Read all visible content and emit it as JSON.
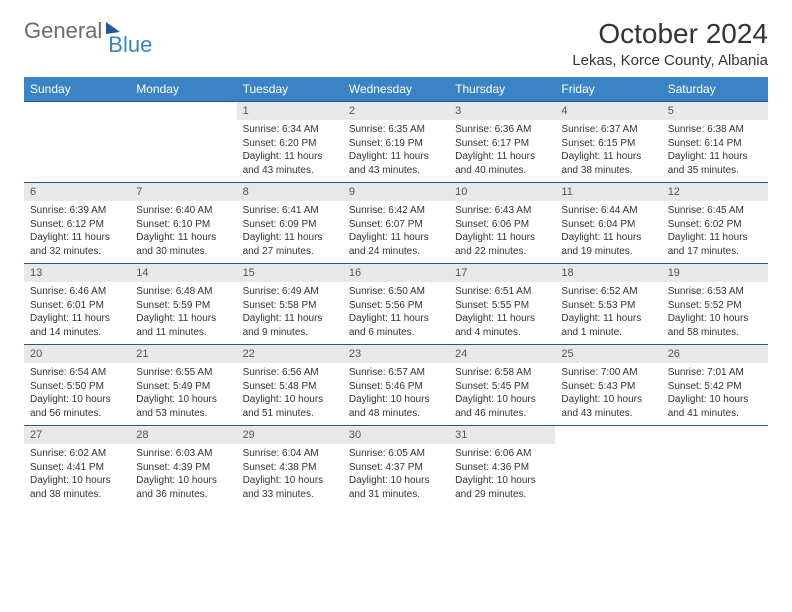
{
  "logo": {
    "part1": "General",
    "part2": "Blue"
  },
  "title": "October 2024",
  "location": "Lekas, Korce County, Albania",
  "colors": {
    "header_bg": "#3a84c5",
    "header_text": "#ffffff",
    "daynum_bg": "#e8e8e8",
    "week_border": "#1f5a96",
    "logo_gray": "#6b6b6b",
    "logo_blue": "#3a84c5"
  },
  "day_headers": [
    "Sunday",
    "Monday",
    "Tuesday",
    "Wednesday",
    "Thursday",
    "Friday",
    "Saturday"
  ],
  "weeks": [
    [
      null,
      null,
      {
        "d": "1",
        "sr": "6:34 AM",
        "ss": "6:20 PM",
        "dl": "11 hours and 43 minutes."
      },
      {
        "d": "2",
        "sr": "6:35 AM",
        "ss": "6:19 PM",
        "dl": "11 hours and 43 minutes."
      },
      {
        "d": "3",
        "sr": "6:36 AM",
        "ss": "6:17 PM",
        "dl": "11 hours and 40 minutes."
      },
      {
        "d": "4",
        "sr": "6:37 AM",
        "ss": "6:15 PM",
        "dl": "11 hours and 38 minutes."
      },
      {
        "d": "5",
        "sr": "6:38 AM",
        "ss": "6:14 PM",
        "dl": "11 hours and 35 minutes."
      }
    ],
    [
      {
        "d": "6",
        "sr": "6:39 AM",
        "ss": "6:12 PM",
        "dl": "11 hours and 32 minutes."
      },
      {
        "d": "7",
        "sr": "6:40 AM",
        "ss": "6:10 PM",
        "dl": "11 hours and 30 minutes."
      },
      {
        "d": "8",
        "sr": "6:41 AM",
        "ss": "6:09 PM",
        "dl": "11 hours and 27 minutes."
      },
      {
        "d": "9",
        "sr": "6:42 AM",
        "ss": "6:07 PM",
        "dl": "11 hours and 24 minutes."
      },
      {
        "d": "10",
        "sr": "6:43 AM",
        "ss": "6:06 PM",
        "dl": "11 hours and 22 minutes."
      },
      {
        "d": "11",
        "sr": "6:44 AM",
        "ss": "6:04 PM",
        "dl": "11 hours and 19 minutes."
      },
      {
        "d": "12",
        "sr": "6:45 AM",
        "ss": "6:02 PM",
        "dl": "11 hours and 17 minutes."
      }
    ],
    [
      {
        "d": "13",
        "sr": "6:46 AM",
        "ss": "6:01 PM",
        "dl": "11 hours and 14 minutes."
      },
      {
        "d": "14",
        "sr": "6:48 AM",
        "ss": "5:59 PM",
        "dl": "11 hours and 11 minutes."
      },
      {
        "d": "15",
        "sr": "6:49 AM",
        "ss": "5:58 PM",
        "dl": "11 hours and 9 minutes."
      },
      {
        "d": "16",
        "sr": "6:50 AM",
        "ss": "5:56 PM",
        "dl": "11 hours and 6 minutes."
      },
      {
        "d": "17",
        "sr": "6:51 AM",
        "ss": "5:55 PM",
        "dl": "11 hours and 4 minutes."
      },
      {
        "d": "18",
        "sr": "6:52 AM",
        "ss": "5:53 PM",
        "dl": "11 hours and 1 minute."
      },
      {
        "d": "19",
        "sr": "6:53 AM",
        "ss": "5:52 PM",
        "dl": "10 hours and 58 minutes."
      }
    ],
    [
      {
        "d": "20",
        "sr": "6:54 AM",
        "ss": "5:50 PM",
        "dl": "10 hours and 56 minutes."
      },
      {
        "d": "21",
        "sr": "6:55 AM",
        "ss": "5:49 PM",
        "dl": "10 hours and 53 minutes."
      },
      {
        "d": "22",
        "sr": "6:56 AM",
        "ss": "5:48 PM",
        "dl": "10 hours and 51 minutes."
      },
      {
        "d": "23",
        "sr": "6:57 AM",
        "ss": "5:46 PM",
        "dl": "10 hours and 48 minutes."
      },
      {
        "d": "24",
        "sr": "6:58 AM",
        "ss": "5:45 PM",
        "dl": "10 hours and 46 minutes."
      },
      {
        "d": "25",
        "sr": "7:00 AM",
        "ss": "5:43 PM",
        "dl": "10 hours and 43 minutes."
      },
      {
        "d": "26",
        "sr": "7:01 AM",
        "ss": "5:42 PM",
        "dl": "10 hours and 41 minutes."
      }
    ],
    [
      {
        "d": "27",
        "sr": "6:02 AM",
        "ss": "4:41 PM",
        "dl": "10 hours and 38 minutes."
      },
      {
        "d": "28",
        "sr": "6:03 AM",
        "ss": "4:39 PM",
        "dl": "10 hours and 36 minutes."
      },
      {
        "d": "29",
        "sr": "6:04 AM",
        "ss": "4:38 PM",
        "dl": "10 hours and 33 minutes."
      },
      {
        "d": "30",
        "sr": "6:05 AM",
        "ss": "4:37 PM",
        "dl": "10 hours and 31 minutes."
      },
      {
        "d": "31",
        "sr": "6:06 AM",
        "ss": "4:36 PM",
        "dl": "10 hours and 29 minutes."
      },
      null,
      null
    ]
  ],
  "labels": {
    "sunrise": "Sunrise:",
    "sunset": "Sunset:",
    "daylight": "Daylight:"
  }
}
